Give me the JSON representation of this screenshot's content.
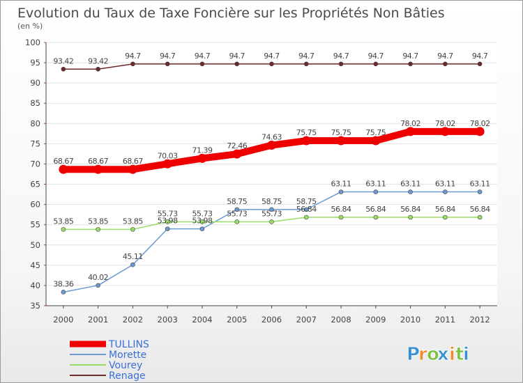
{
  "chart_data": {
    "type": "line",
    "title": "Evolution du Taux de Taxe Foncière sur les Propriétés Non Bâties",
    "subtitle": "(en %)",
    "xlabel": "",
    "ylabel": "(en %)",
    "ylim": [
      35,
      100
    ],
    "yticks": [
      35,
      40,
      45,
      50,
      55,
      60,
      65,
      70,
      75,
      80,
      85,
      90,
      95,
      100
    ],
    "x": [
      "2000",
      "2001",
      "2002",
      "2003",
      "2004",
      "2005",
      "2006",
      "2007",
      "2008",
      "2009",
      "2010",
      "2011",
      "2012"
    ],
    "grid": "horizontal",
    "legend_position": "bottom-left",
    "series": [
      {
        "name": "Renage",
        "color": "#6b2a2a",
        "values": [
          93.42,
          93.42,
          94.7,
          94.7,
          94.7,
          94.7,
          94.7,
          94.7,
          94.7,
          94.7,
          94.7,
          94.7,
          94.7
        ],
        "labels": [
          "93.42",
          "93.42",
          "94.7",
          "94.7",
          "94.7",
          "94.7",
          "94.7",
          "94.7",
          "94.7",
          "94.7",
          "94.7",
          "94.7",
          "94.7"
        ]
      },
      {
        "name": "TULLINS",
        "color": "#ee0000",
        "values": [
          68.67,
          68.67,
          68.67,
          70.03,
          71.39,
          72.46,
          74.63,
          75.75,
          75.75,
          75.75,
          78.02,
          78.02,
          78.02
        ],
        "labels": [
          "68.67",
          "68.67",
          "68.67",
          "70.03",
          "71.39",
          "72.46",
          "74.63",
          "75.75",
          "75.75",
          "75.75",
          "78.02",
          "78.02",
          "78.02"
        ]
      },
      {
        "name": "Morette",
        "color": "#6a9ad0",
        "values": [
          38.36,
          40.02,
          45.11,
          53.98,
          53.98,
          58.75,
          58.75,
          58.75,
          63.11,
          63.11,
          63.11,
          63.11,
          63.11
        ],
        "labels": [
          "38.36",
          "40.02",
          "45.11",
          "53.98",
          "53.98",
          "58.75",
          "58.75",
          "58.75",
          "63.11",
          "63.11",
          "63.11",
          "63.11",
          "63.11"
        ]
      },
      {
        "name": "Vourey",
        "color": "#99dd66",
        "values": [
          53.85,
          53.85,
          53.85,
          55.73,
          55.73,
          55.73,
          55.73,
          56.84,
          56.84,
          56.84,
          56.84,
          56.84,
          56.84
        ],
        "labels": [
          "53.85",
          "53.85",
          "53.85",
          "55.73",
          "55.73",
          "55.73",
          "55.73",
          "56.84",
          "56.84",
          "56.84",
          "56.84",
          "56.84",
          "56.84"
        ]
      }
    ],
    "legend": [
      {
        "name": "TULLINS",
        "color": "#ee0000"
      },
      {
        "name": "Morette",
        "color": "#6a9ad0"
      },
      {
        "name": "Vourey",
        "color": "#99dd66"
      },
      {
        "name": "Renage",
        "color": "#6b2a2a"
      }
    ]
  },
  "brand": {
    "letters": [
      "P",
      "r",
      "o",
      "x",
      "i",
      "t",
      "i"
    ],
    "colors": [
      "#3a8fd0",
      "#f08a2c",
      "#7cc142",
      "#3a8fd0",
      "#f08a2c",
      "#7cc142",
      "#3a8fd0"
    ]
  }
}
